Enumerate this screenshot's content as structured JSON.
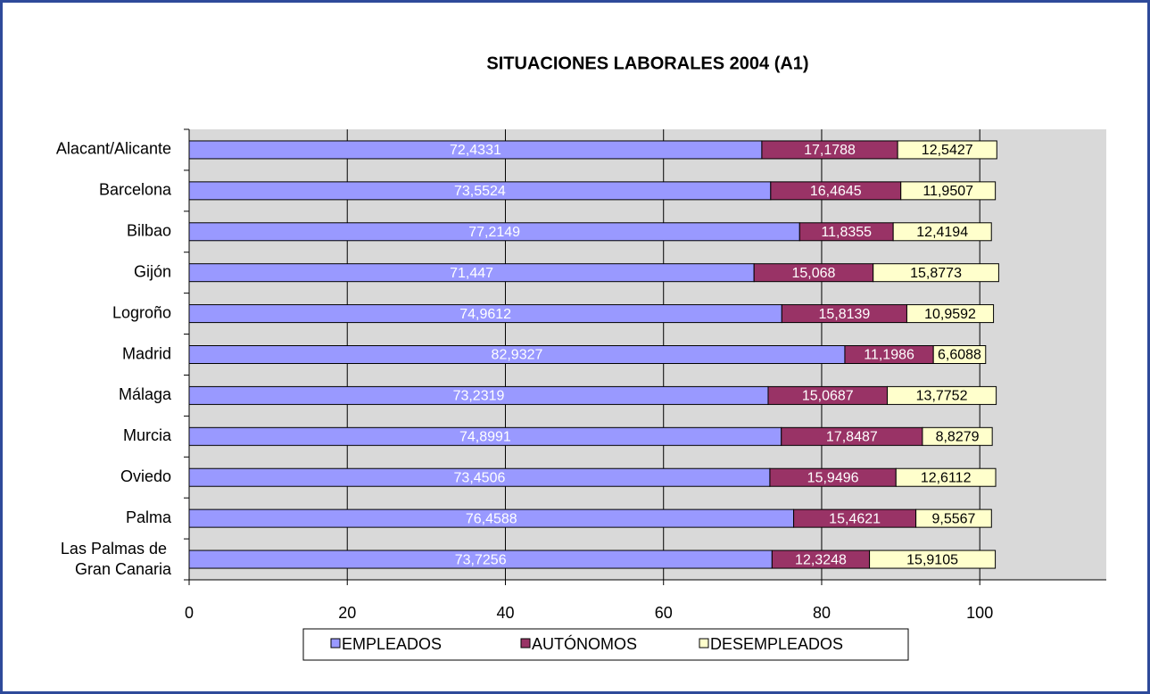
{
  "chart_data": {
    "type": "stacked_barh",
    "title": "SITUACIONES LABORALES 2004 (A1)",
    "categories": [
      "Alacant/Alicante",
      "Barcelona",
      "Bilbao",
      "Gijón",
      "Logroño",
      "Madrid",
      "Málaga",
      "Murcia",
      "Oviedo",
      "Palma",
      "Las Palmas de Gran Canaria"
    ],
    "series": [
      {
        "name": "EMPLEADOS",
        "color": "#9999ff",
        "label_color": "#ffffff",
        "values": [
          72.4331,
          73.5524,
          77.2149,
          71.447,
          74.9612,
          82.9327,
          73.2319,
          74.8991,
          73.4506,
          76.4588,
          73.7256
        ],
        "value_labels": [
          "72,4331",
          "73,5524",
          "77,2149",
          "71,447",
          "74,9612",
          "82,9327",
          "73,2319",
          "74,8991",
          "73,4506",
          "76,4588",
          "73,7256"
        ]
      },
      {
        "name": "AUTÓNOMOS",
        "color": "#993366",
        "label_color": "#ffffff",
        "values": [
          17.1788,
          16.4645,
          11.8355,
          15.068,
          15.8139,
          11.1986,
          15.0687,
          17.8487,
          15.9496,
          15.4621,
          12.3248
        ],
        "value_labels": [
          "17,1788",
          "16,4645",
          "11,8355",
          "15,068",
          "15,8139",
          "11,1986",
          "15,0687",
          "17,8487",
          "15,9496",
          "15,4621",
          "12,3248"
        ]
      },
      {
        "name": "DESEMPLEADOS",
        "color": "#ffffcc",
        "label_color": "#000000",
        "values": [
          12.5427,
          11.9507,
          12.4194,
          15.8773,
          10.9592,
          6.6088,
          13.7752,
          8.8279,
          12.6112,
          9.5567,
          15.9105
        ],
        "value_labels": [
          "12,5427",
          "11,9507",
          "12,4194",
          "15,8773",
          "10,9592",
          "6,6088",
          "13,7752",
          "8,8279",
          "12,6112",
          "9,5567",
          "15,9105"
        ]
      }
    ],
    "xlim": [
      0,
      116
    ],
    "xticks": [
      0,
      20,
      40,
      60,
      80,
      100
    ],
    "grid": true,
    "legend": "bottom"
  }
}
